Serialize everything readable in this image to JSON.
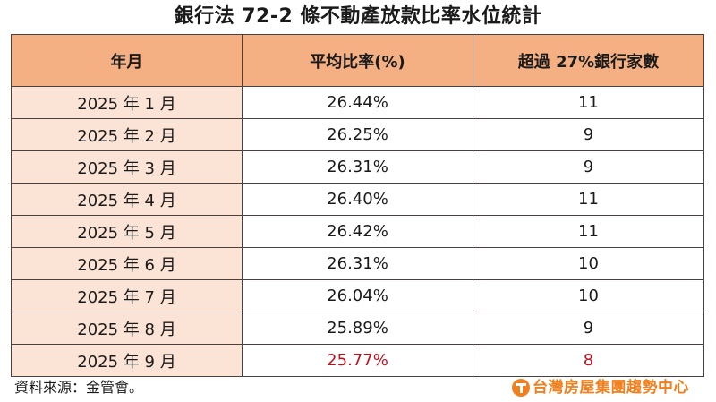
{
  "title": "銀行法 72-2 條不動產放款比率水位統計",
  "table": {
    "headers": [
      "年月",
      "平均比率(%)",
      "超過 27%銀行家數"
    ],
    "rows": [
      {
        "month": "2025 年 1 月",
        "ratio": "26.44%",
        "count": "11",
        "highlight": false
      },
      {
        "month": "2025 年 2 月",
        "ratio": "26.25%",
        "count": "9",
        "highlight": false
      },
      {
        "month": "2025 年 3 月",
        "ratio": "26.31%",
        "count": "9",
        "highlight": false
      },
      {
        "month": "2025 年 4 月",
        "ratio": "26.40%",
        "count": "11",
        "highlight": false
      },
      {
        "month": "2025 年 5 月",
        "ratio": "26.42%",
        "count": "11",
        "highlight": false
      },
      {
        "month": "2025 年 6 月",
        "ratio": "26.31%",
        "count": "10",
        "highlight": false
      },
      {
        "month": "2025 年 7 月",
        "ratio": "26.04%",
        "count": "10",
        "highlight": false
      },
      {
        "month": "2025 年 8 月",
        "ratio": "25.89%",
        "count": "9",
        "highlight": false
      },
      {
        "month": "2025 年 9 月",
        "ratio": "25.77%",
        "count": "8",
        "highlight": true
      }
    ]
  },
  "footer": {
    "source": "資料來源：金管會。",
    "logo_text": "台灣房屋集團趨勢中心",
    "logo_icon": "taiwan-realty-t-icon"
  },
  "colors": {
    "header_bg": "#f4b083",
    "month_col_bg": "#fbe4d5",
    "highlight_text": "#c0101e",
    "logo_orange": "#f07f1d",
    "border": "#4a4040"
  }
}
